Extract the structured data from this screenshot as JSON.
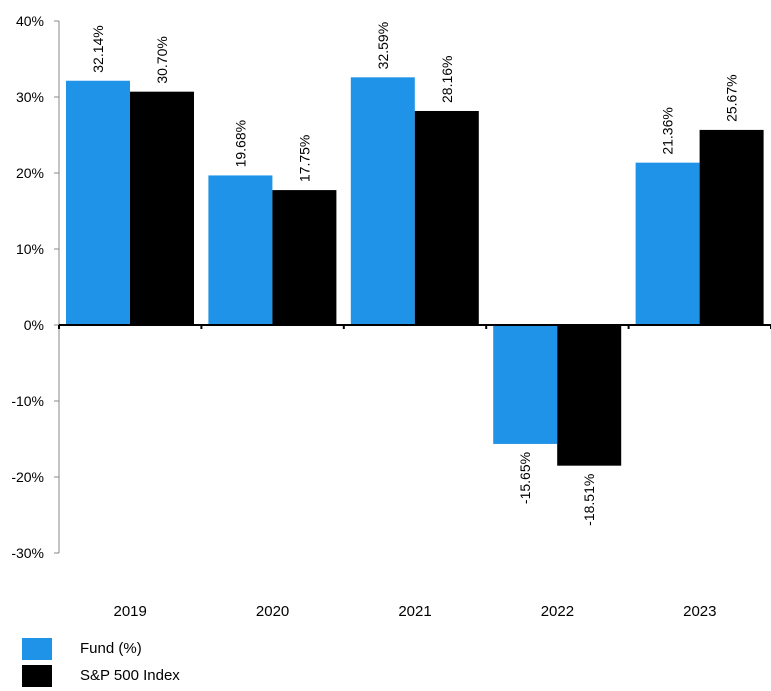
{
  "chart_data": {
    "type": "bar",
    "categories": [
      "2019",
      "2020",
      "2021",
      "2022",
      "2023"
    ],
    "series": [
      {
        "name": "Fund (%)",
        "color": "#1f93e8",
        "values": [
          32.14,
          19.68,
          32.59,
          -15.65,
          21.36
        ],
        "labels": [
          "32.14%",
          "19.68%",
          "32.59%",
          "-15.65%",
          "21.36%"
        ]
      },
      {
        "name": "S&P 500 Index",
        "color": "#000000",
        "values": [
          30.7,
          17.75,
          28.16,
          -18.51,
          25.67
        ],
        "labels": [
          "30.70%",
          "17.75%",
          "28.16%",
          "-18.51%",
          "25.67%"
        ]
      }
    ],
    "ylim": [
      -30,
      40
    ],
    "yticks": [
      40,
      30,
      20,
      10,
      0,
      -10,
      -20,
      -30
    ],
    "ytick_labels": [
      "40%",
      "30%",
      "20%",
      "10%",
      "0%",
      "-10%",
      "-20%",
      "-30%"
    ],
    "grid": false,
    "legend_position": "bottom-left"
  }
}
